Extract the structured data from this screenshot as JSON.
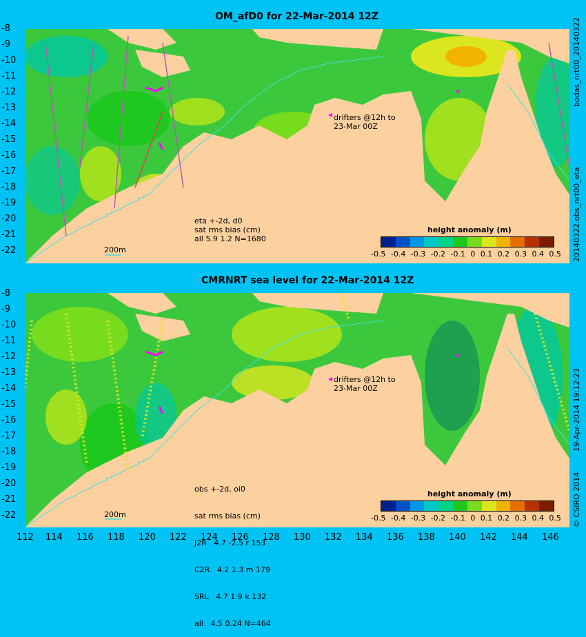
{
  "panels": [
    {
      "title": "OM_afD0 for 22-Mar-2014 12Z",
      "notes": [
        "eta +-2d, d0",
        "sat rms bias (cm)",
        "all 5.9 1.2 N=1680"
      ],
      "drifter_note": [
        "drifters @12h to",
        "23-Mar 00Z"
      ],
      "scale_label": "200m",
      "colorbar_label": "height anomaly (m)",
      "side_label": "bodas_nrt00_20140322",
      "side_label2": "20140322.obs_nrt00_eta"
    },
    {
      "title": "CMRNRT sea level  for 22-Mar-2014 12Z",
      "notes": [
        "obs +-2d, oi0",
        "sat rms bias (cm)",
        "J2R   4.7 -2.5 r 153",
        "C2R   4.2 1.3 m 179",
        "SRL   4.7 1.9 k 132",
        "all   4.5 0.24 N=464"
      ],
      "drifter_note": [
        "drifters @12h to",
        "23-Mar 00Z"
      ],
      "scale_label": "200m",
      "colorbar_label": "height anomaly (m)",
      "side_label": "19-Apr-2014 19:12:23",
      "side_label2": "© CSIRO 2014"
    }
  ],
  "map": {
    "lat_ticks": [
      "-8",
      "-9",
      "-10",
      "-11",
      "-12",
      "-13",
      "-14",
      "-15",
      "-16",
      "-17",
      "-18",
      "-19",
      "-20",
      "-21",
      "-22"
    ],
    "lon_ticks": [
      "112",
      "114",
      "116",
      "118",
      "120",
      "122",
      "124",
      "126",
      "128",
      "130",
      "132",
      "134",
      "136",
      "138",
      "140",
      "142",
      "144",
      "146"
    ],
    "lat_range": [
      -22.5,
      -8
    ],
    "lon_range": [
      112,
      147
    ]
  },
  "colorbar": {
    "ticks": [
      "-0.5",
      "-0.4",
      "-0.3",
      "-0.2",
      "-0.1",
      "0",
      "0.1",
      "0.2",
      "0.3",
      "0.4",
      "0.5"
    ],
    "range": [
      -0.5,
      0.5
    ],
    "colors": [
      "#00208c",
      "#0050c8",
      "#0096e6",
      "#00c8c8",
      "#00d28c",
      "#1ec81e",
      "#78dc1e",
      "#dce61e",
      "#f0b400",
      "#e66e00",
      "#b43200",
      "#7a1e00"
    ]
  },
  "colors": {
    "background": "#00c3f5",
    "land": "#fdd09f",
    "sea": "#3cc83c",
    "coast_contour": "#40e0e0",
    "drifter": "#ff00ff"
  }
}
